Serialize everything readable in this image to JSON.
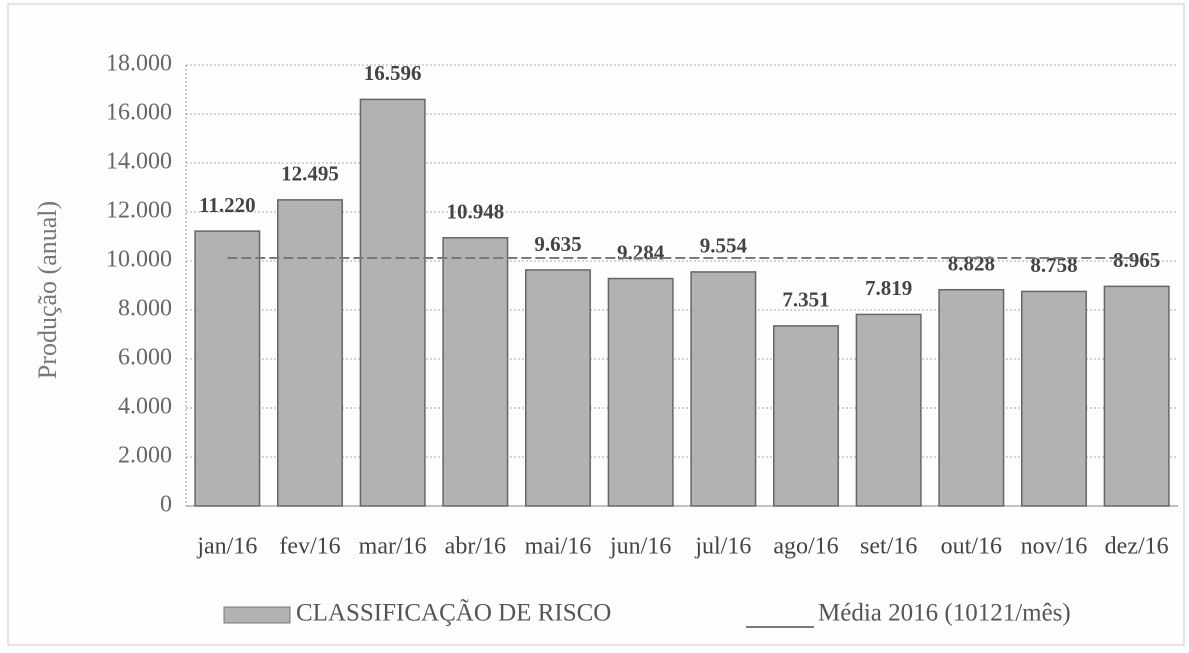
{
  "chart_data": {
    "type": "bar",
    "y_label": "Produção (anual)",
    "categories": [
      "jan/16",
      "fev/16",
      "mar/16",
      "abr/16",
      "mai/16",
      "jun/16",
      "jul/16",
      "ago/16",
      "set/16",
      "out/16",
      "nov/16",
      "dez/16"
    ],
    "series": [
      {
        "name": "CLASSIFICAÇÃO DE RISCO",
        "color": "#b2b2b2",
        "values": [
          11220,
          12495,
          16596,
          10948,
          9635,
          9284,
          9554,
          7351,
          7819,
          8828,
          8758,
          8965
        ],
        "value_labels": [
          "11.220",
          "12.495",
          "16.596",
          "10.948",
          "9.635",
          "9.284",
          "9.554",
          "7.351",
          "7.819",
          "8.828",
          "8.758",
          "8.965"
        ]
      },
      {
        "name": "Média 2016 (10121/mês)",
        "type": "line",
        "color": "#7a7a7a",
        "values": [
          10121,
          10121,
          10121,
          10121,
          10121,
          10121,
          10121,
          10121,
          10121,
          10121,
          10121,
          10121
        ]
      }
    ],
    "ylim": [
      0,
      18000
    ],
    "yticks": [
      0,
      {
        "value": 2000,
        "label": "2.000"
      },
      {
        "value": 4000,
        "label": "4.000"
      },
      {
        "value": 6000,
        "label": "6.000"
      },
      {
        "value": 8000,
        "label": "8.000"
      },
      {
        "value": 10000,
        "label": "10.000"
      },
      {
        "value": 12000,
        "label": "12.000"
      },
      {
        "value": 14000,
        "label": "14.000"
      },
      {
        "value": 16000,
        "label": "16.000"
      },
      {
        "value": 18000,
        "label": "18.000"
      }
    ],
    "grid": true,
    "legend": "bottom"
  }
}
